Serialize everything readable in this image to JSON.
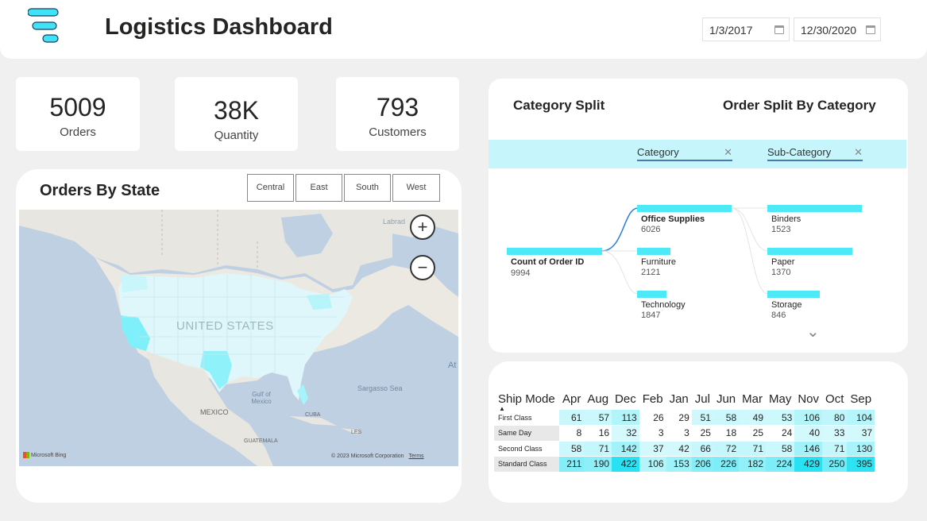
{
  "header": {
    "title": "Logistics Dashboard",
    "start_date": "1/3/2017",
    "end_date": "12/30/2020"
  },
  "kpis": [
    {
      "value": "5009",
      "label": "Orders"
    },
    {
      "value": "38K",
      "label": "Quantity"
    },
    {
      "value": "793",
      "label": "Customers"
    }
  ],
  "map": {
    "title": "Orders By State",
    "regions": [
      "Central",
      "East",
      "South",
      "West"
    ],
    "country_label": "UNITED STATES",
    "labels": {
      "labrador": "Labrad",
      "gulf": "Gulf of Mexico",
      "sargasso": "Sargasso Sea",
      "atlantic": "At",
      "mexico": "MEXICO",
      "cuba": "CUBA",
      "guatemala": "GUATEMALA",
      "islands": "LES"
    },
    "bing_label": "Microsoft Bing",
    "copyright": "© 2023 Microsoft Corporation",
    "terms": "Terms",
    "zoom_in": "+",
    "zoom_out": "−"
  },
  "decomposition": {
    "title_left": "Category Split",
    "title_right": "Order Split By Category",
    "filters": [
      "Category",
      "Sub-Category"
    ],
    "root": {
      "label": "Count of Order ID",
      "value": "9994"
    },
    "categories": [
      {
        "label": "Office Supplies",
        "value": "6026"
      },
      {
        "label": "Furniture",
        "value": "2121"
      },
      {
        "label": "Technology",
        "value": "1847"
      }
    ],
    "subcategories": [
      {
        "label": "Binders",
        "value": "1523"
      },
      {
        "label": "Paper",
        "value": "1370"
      },
      {
        "label": "Storage",
        "value": "846"
      }
    ],
    "chevron": "⌄"
  },
  "matrix": {
    "row_header": "Ship Mode",
    "columns": [
      "Apr",
      "Aug",
      "Dec",
      "Feb",
      "Jan",
      "Jul",
      "Jun",
      "Mar",
      "May",
      "Nov",
      "Oct",
      "Sep"
    ],
    "rows": [
      {
        "label": "First Class",
        "values": [
          61,
          57,
          113,
          26,
          29,
          51,
          58,
          49,
          53,
          106,
          80,
          104
        ]
      },
      {
        "label": "Same Day",
        "values": [
          8,
          16,
          32,
          3,
          3,
          25,
          18,
          25,
          24,
          40,
          33,
          37
        ]
      },
      {
        "label": "Second Class",
        "values": [
          58,
          71,
          142,
          37,
          42,
          66,
          72,
          71,
          58,
          146,
          71,
          130
        ]
      },
      {
        "label": "Standard Class",
        "values": [
          211,
          190,
          422,
          106,
          153,
          206,
          226,
          182,
          224,
          429,
          250,
          395
        ]
      }
    ]
  },
  "colors": {
    "accent": "#4de9f7",
    "filter_bar": "#c6f6fb",
    "map_water": "#bfd0e2"
  }
}
